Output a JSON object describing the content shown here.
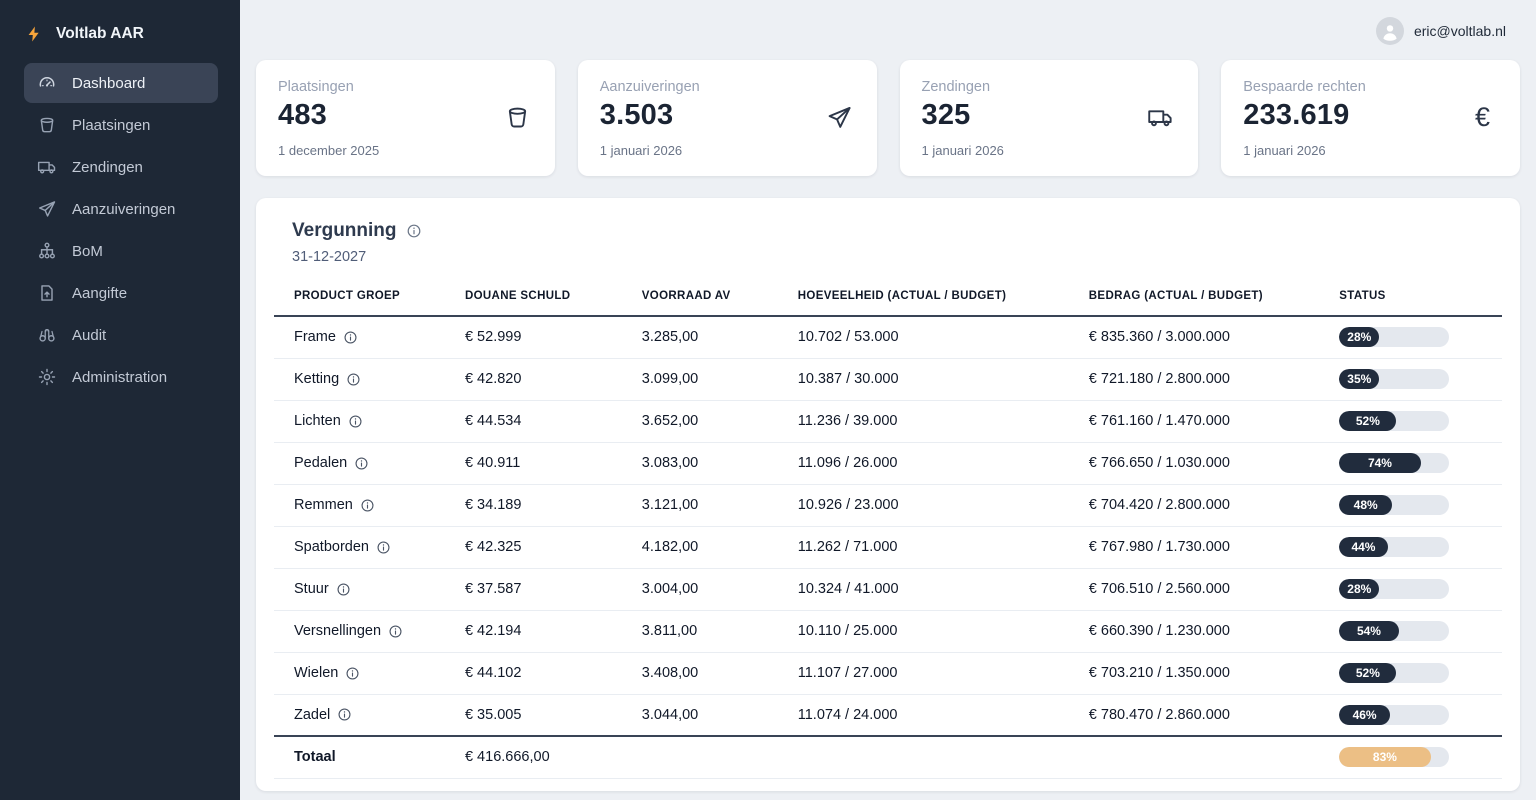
{
  "brand": {
    "name": "Voltlab AAR",
    "logo_icon": "bolt"
  },
  "sidebar": {
    "items": [
      {
        "id": "dashboard",
        "label": "Dashboard",
        "icon": "gauge",
        "active": true
      },
      {
        "id": "plaatsingen",
        "label": "Plaatsingen",
        "icon": "bucket",
        "active": false
      },
      {
        "id": "zendingen",
        "label": "Zendingen",
        "icon": "truck",
        "active": false
      },
      {
        "id": "aanzuiveringen",
        "label": "Aanzuiveringen",
        "icon": "send",
        "active": false
      },
      {
        "id": "bom",
        "label": "BoM",
        "icon": "sitemap",
        "active": false
      },
      {
        "id": "aangifte",
        "label": "Aangifte",
        "icon": "file-up",
        "active": false
      },
      {
        "id": "audit",
        "label": "Audit",
        "icon": "binoculars",
        "active": false
      },
      {
        "id": "administration",
        "label": "Administration",
        "icon": "gear",
        "active": false
      }
    ]
  },
  "user": {
    "email": "eric@voltlab.nl",
    "avatar_icon": "user"
  },
  "stats": [
    {
      "id": "plaatsingen",
      "label": "Plaatsingen",
      "value": "483",
      "date": "1 december 2025",
      "icon": "bucket"
    },
    {
      "id": "aanzuiveringen",
      "label": "Aanzuiveringen",
      "value": "3.503",
      "date": "1 januari 2026",
      "icon": "send"
    },
    {
      "id": "zendingen",
      "label": "Zendingen",
      "value": "325",
      "date": "1 januari 2026",
      "icon": "truck"
    },
    {
      "id": "bespaarde-rechten",
      "label": "Bespaarde rechten",
      "value": "233.619",
      "date": "1 januari 2026",
      "icon": "euro"
    }
  ],
  "table": {
    "title": "Vergunning",
    "title_info_icon": "info",
    "date": "31-12-2027",
    "columns": [
      "PRODUCT GROEP",
      "DOUANE SCHULD",
      "VOORRAAD AV",
      "HOEVEELHEID (ACTUAL / BUDGET)",
      "BEDRAG (ACTUAL / BUDGET)",
      "STATUS"
    ],
    "rows": [
      {
        "product": "Frame",
        "douane_schuld": "€ 52.999",
        "voorraad_av": "3.285,00",
        "hoeveelheid": "10.702 / 53.000",
        "bedrag": "€ 835.360 / 3.000.000",
        "status_pct": 28
      },
      {
        "product": "Ketting",
        "douane_schuld": "€ 42.820",
        "voorraad_av": "3.099,00",
        "hoeveelheid": "10.387 / 30.000",
        "bedrag": "€ 721.180 / 2.800.000",
        "status_pct": 35
      },
      {
        "product": "Lichten",
        "douane_schuld": "€ 44.534",
        "voorraad_av": "3.652,00",
        "hoeveelheid": "11.236 / 39.000",
        "bedrag": "€ 761.160 / 1.470.000",
        "status_pct": 52
      },
      {
        "product": "Pedalen",
        "douane_schuld": "€ 40.911",
        "voorraad_av": "3.083,00",
        "hoeveelheid": "11.096 / 26.000",
        "bedrag": "€ 766.650 / 1.030.000",
        "status_pct": 74
      },
      {
        "product": "Remmen",
        "douane_schuld": "€ 34.189",
        "voorraad_av": "3.121,00",
        "hoeveelheid": "10.926 / 23.000",
        "bedrag": "€ 704.420 / 2.800.000",
        "status_pct": 48
      },
      {
        "product": "Spatborden",
        "douane_schuld": "€ 42.325",
        "voorraad_av": "4.182,00",
        "hoeveelheid": "11.262 / 71.000",
        "bedrag": "€ 767.980 / 1.730.000",
        "status_pct": 44
      },
      {
        "product": "Stuur",
        "douane_schuld": "€ 37.587",
        "voorraad_av": "3.004,00",
        "hoeveelheid": "10.324 / 41.000",
        "bedrag": "€ 706.510 / 2.560.000",
        "status_pct": 28
      },
      {
        "product": "Versnellingen",
        "douane_schuld": "€ 42.194",
        "voorraad_av": "3.811,00",
        "hoeveelheid": "10.110 / 25.000",
        "bedrag": "€ 660.390 / 1.230.000",
        "status_pct": 54
      },
      {
        "product": "Wielen",
        "douane_schuld": "€ 44.102",
        "voorraad_av": "3.408,00",
        "hoeveelheid": "11.107 / 27.000",
        "bedrag": "€ 703.210 / 1.350.000",
        "status_pct": 52
      },
      {
        "product": "Zadel",
        "douane_schuld": "€ 35.005",
        "voorraad_av": "3.044,00",
        "hoeveelheid": "11.074 / 24.000",
        "bedrag": "€ 780.470 / 2.860.000",
        "status_pct": 46
      }
    ],
    "total": {
      "label": "Totaal",
      "douane_schuld": "€ 416.666,00",
      "status_pct": 83
    }
  },
  "colors": {
    "sidebar_bg": "#1e2836",
    "accent_bolt": "#f6a43b",
    "status_fill": "#212c3d",
    "status_track": "#e4e8ee",
    "total_status_fill": "#ecbf85"
  }
}
